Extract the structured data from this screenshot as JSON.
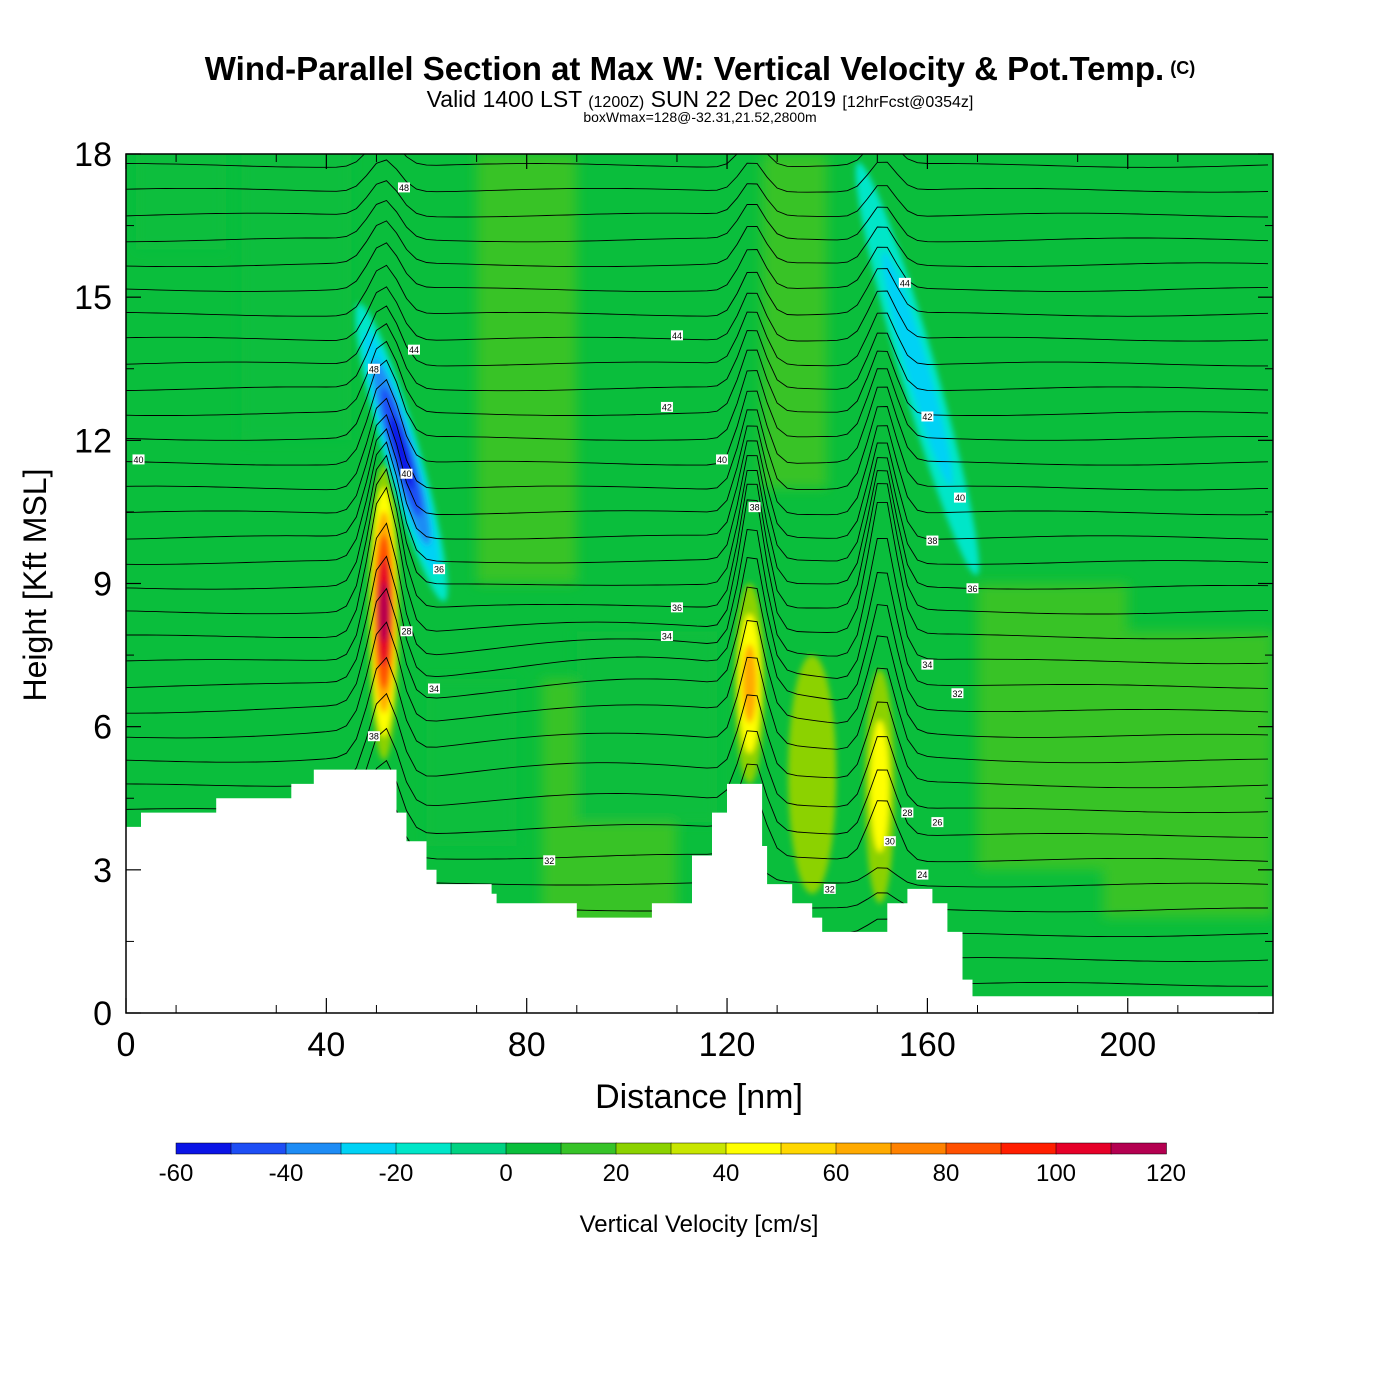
{
  "title": "Wind-Parallel Section at Max W: Vertical Velocity & Pot.Temp.",
  "copyright_mark": "(C)",
  "subtitle": {
    "valid": "Valid 1400 LST",
    "utc": "(1200Z)",
    "date": "SUN 22 Dec 2019",
    "forecast": "[12hrFcst@0354z]"
  },
  "info_line": "boxWmax=128@-32.31,21.52,2800m",
  "chart_data": {
    "type": "heatmap",
    "xlabel": "Distance [nm]",
    "ylabel": "Height [Kft MSL]",
    "xlim": [
      0,
      229
    ],
    "ylim": [
      0,
      18
    ],
    "x_ticks": [
      0,
      40,
      80,
      120,
      160,
      200
    ],
    "y_ticks": [
      0,
      3,
      6,
      9,
      12,
      15,
      18
    ],
    "field_label": "Vertical Velocity [cm/s]",
    "colorbar": {
      "bounds": [
        -60,
        130
      ],
      "step": 10,
      "tick_labels": [
        -60,
        -40,
        -20,
        0,
        20,
        40,
        60,
        80,
        100,
        120
      ],
      "colors": [
        "#0a14e6",
        "#1e4ef5",
        "#1e8cf5",
        "#00d2f5",
        "#00e6c8",
        "#00d282",
        "#0abe3c",
        "#37c328",
        "#8cd200",
        "#c8e600",
        "#ffff00",
        "#ffd700",
        "#ffaa00",
        "#ff8200",
        "#ff5000",
        "#ff1e00",
        "#e60028",
        "#b40050"
      ]
    },
    "terrain_kft": [
      {
        "x": 0,
        "h": 3.9
      },
      {
        "x": 3,
        "h": 4.2
      },
      {
        "x": 17,
        "h": 4.2
      },
      {
        "x": 18,
        "h": 4.5
      },
      {
        "x": 32,
        "h": 4.5
      },
      {
        "x": 33,
        "h": 4.8
      },
      {
        "x": 37,
        "h": 4.8
      },
      {
        "x": 37.5,
        "h": 5.1
      },
      {
        "x": 53.5,
        "h": 5.1
      },
      {
        "x": 54,
        "h": 4.2
      },
      {
        "x": 56,
        "h": 3.6
      },
      {
        "x": 60,
        "h": 3.0
      },
      {
        "x": 62,
        "h": 2.7
      },
      {
        "x": 73,
        "h": 2.5
      },
      {
        "x": 74,
        "h": 2.3
      },
      {
        "x": 90,
        "h": 2.0
      },
      {
        "x": 104,
        "h": 2.0
      },
      {
        "x": 105,
        "h": 2.3
      },
      {
        "x": 112,
        "h": 2.3
      },
      {
        "x": 113,
        "h": 3.3
      },
      {
        "x": 117,
        "h": 4.2
      },
      {
        "x": 120,
        "h": 4.8
      },
      {
        "x": 124,
        "h": 4.8
      },
      {
        "x": 127,
        "h": 3.5
      },
      {
        "x": 128,
        "h": 2.7
      },
      {
        "x": 133,
        "h": 2.3
      },
      {
        "x": 137,
        "h": 2.0
      },
      {
        "x": 139,
        "h": 1.7
      },
      {
        "x": 151,
        "h": 1.7
      },
      {
        "x": 152,
        "h": 2.3
      },
      {
        "x": 156,
        "h": 2.6
      },
      {
        "x": 159,
        "h": 2.6
      },
      {
        "x": 161,
        "h": 2.3
      },
      {
        "x": 164,
        "h": 1.7
      },
      {
        "x": 167,
        "h": 0.7
      },
      {
        "x": 169,
        "h": 0.35
      },
      {
        "x": 229,
        "h": 0.35
      }
    ],
    "vertical_velocity_features": [
      {
        "x": 51.5,
        "y_bottom": 5.3,
        "y_top": 11.5,
        "peak_cm_s": 128,
        "kind": "updraft"
      },
      {
        "x": 55,
        "y_bottom": 8.5,
        "y_top": 15.0,
        "peak_cm_s": -55,
        "kind": "downdraft"
      },
      {
        "x": 124.5,
        "y_bottom": 4.8,
        "y_top": 9.0,
        "peak_cm_s": 65,
        "kind": "updraft"
      },
      {
        "x": 150.5,
        "y_bottom": 2.3,
        "y_top": 7.2,
        "peak_cm_s": 60,
        "kind": "updraft"
      },
      {
        "x": 137,
        "y_bottom": 2.5,
        "y_top": 7.5,
        "peak_cm_s": 35,
        "kind": "updraft"
      },
      {
        "x": 158,
        "y_bottom": 9.0,
        "y_top": 18,
        "peak_cm_s": -25,
        "kind": "downdraft"
      }
    ],
    "contour_labels": [
      {
        "text": "40",
        "x": 2.5,
        "y": 11.6
      },
      {
        "text": "48",
        "x": 55.5,
        "y": 17.3
      },
      {
        "text": "44",
        "x": 57.5,
        "y": 13.9
      },
      {
        "text": "48",
        "x": 49.5,
        "y": 13.5
      },
      {
        "text": "40",
        "x": 56,
        "y": 11.3
      },
      {
        "text": "36",
        "x": 62.5,
        "y": 9.3
      },
      {
        "text": "28",
        "x": 56,
        "y": 8.0
      },
      {
        "text": "34",
        "x": 61.5,
        "y": 6.8
      },
      {
        "text": "38",
        "x": 49.5,
        "y": 5.8
      },
      {
        "text": "32",
        "x": 84.5,
        "y": 3.2
      },
      {
        "text": "44",
        "x": 110,
        "y": 14.2
      },
      {
        "text": "42",
        "x": 108,
        "y": 12.7
      },
      {
        "text": "40",
        "x": 119,
        "y": 11.6
      },
      {
        "text": "38",
        "x": 125.5,
        "y": 10.6
      },
      {
        "text": "36",
        "x": 110,
        "y": 8.5
      },
      {
        "text": "34",
        "x": 108,
        "y": 7.9
      },
      {
        "text": "44",
        "x": 155.5,
        "y": 15.3
      },
      {
        "text": "42",
        "x": 160,
        "y": 12.5
      },
      {
        "text": "40",
        "x": 166.5,
        "y": 10.8
      },
      {
        "text": "38",
        "x": 161,
        "y": 9.9
      },
      {
        "text": "36",
        "x": 169,
        "y": 8.9
      },
      {
        "text": "34",
        "x": 160,
        "y": 7.3
      },
      {
        "text": "32",
        "x": 166,
        "y": 6.7
      },
      {
        "text": "32",
        "x": 140.5,
        "y": 2.6
      },
      {
        "text": "30",
        "x": 152.5,
        "y": 3.6
      },
      {
        "text": "28",
        "x": 156,
        "y": 4.2
      },
      {
        "text": "26",
        "x": 162,
        "y": 4.0
      },
      {
        "text": "24",
        "x": 159,
        "y": 2.9
      }
    ]
  }
}
